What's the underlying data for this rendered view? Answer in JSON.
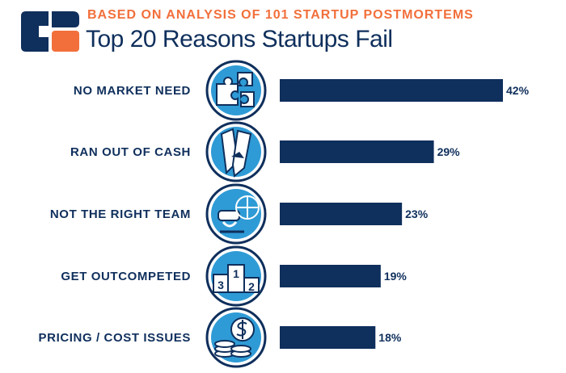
{
  "header": {
    "subtitle": "BASED ON ANALYSIS OF 101 STARTUP POSTMORTEMS",
    "title": "Top 20 Reasons Startups Fail"
  },
  "colors": {
    "navy": "#0f2f5c",
    "orange": "#f26f3b",
    "icon_blue": "#2f9bd6"
  },
  "icons": [
    "puzzle-icon",
    "torn-money-icon",
    "vr-headset-team-icon",
    "podium-icon",
    "dollar-coins-icon"
  ],
  "chart_data": {
    "type": "bar",
    "orientation": "horizontal",
    "categories": [
      "NO MARKET NEED",
      "RAN OUT OF CASH",
      "NOT THE RIGHT TEAM",
      "GET OUTCOMPETED",
      "PRICING / COST ISSUES"
    ],
    "values": [
      42,
      29,
      23,
      19,
      18
    ],
    "value_labels": [
      "42%",
      "29%",
      "23%",
      "19%",
      "18%"
    ],
    "xlim": [
      0,
      42
    ],
    "grid": false,
    "legend": "none",
    "podium_labels": [
      "3",
      "1",
      "2"
    ]
  }
}
